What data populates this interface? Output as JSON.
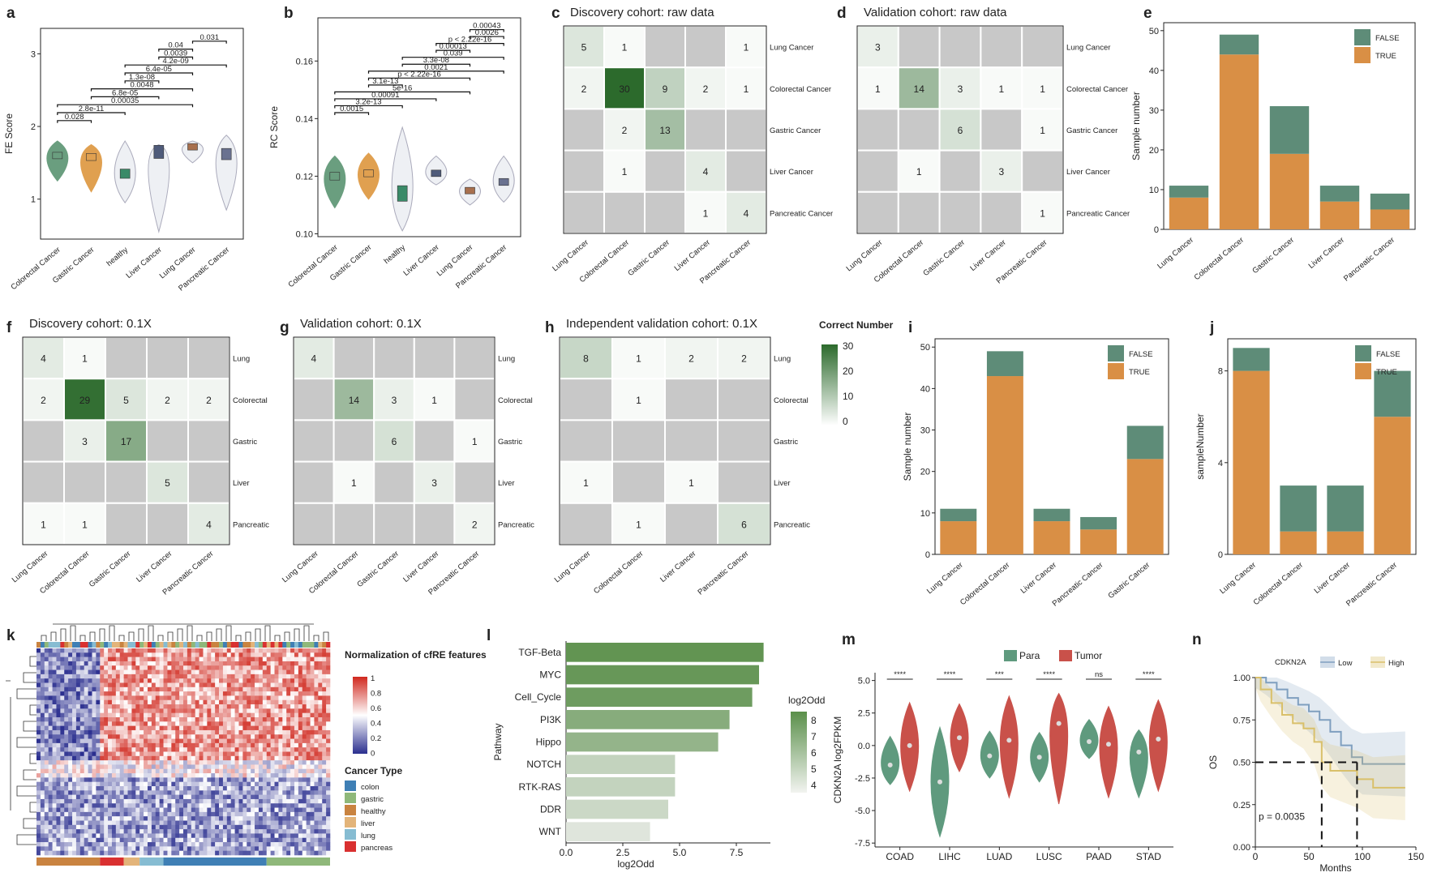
{
  "chart_data": [
    {
      "panel": "a",
      "type": "violin",
      "ylabel": "FE Score",
      "ylim": [
        0.45,
        3.35
      ],
      "yticks": [
        "1",
        "2",
        "3"
      ],
      "categories": [
        "Colorectal Cancer",
        "Gastric Cancer",
        "healthy",
        "Liver Cancer",
        "Lung Cancer",
        "Pancreatic Cancer"
      ],
      "median": [
        1.6,
        1.58,
        1.35,
        1.65,
        1.72,
        1.62
      ],
      "min": [
        1.25,
        1.1,
        0.95,
        0.55,
        1.5,
        0.85
      ],
      "max": [
        1.8,
        1.75,
        1.8,
        1.75,
        1.8,
        1.88
      ],
      "colors": [
        "#6a9e7f",
        "#e0a050",
        "#3a8a68",
        "#4f5b7a",
        "#a8704e",
        "#6a7290"
      ],
      "comparisons": [
        {
          "pair": [
            0,
            1
          ],
          "label": "0.028"
        },
        {
          "pair": [
            0,
            2
          ],
          "label": "2.8e-11"
        },
        {
          "pair": [
            0,
            4
          ],
          "label": "0.00035"
        },
        {
          "pair": [
            1,
            3
          ],
          "label": "6.8e-05"
        },
        {
          "pair": [
            1,
            4
          ],
          "label": "0.0048"
        },
        {
          "pair": [
            2,
            3
          ],
          "label": "1.3e-08"
        },
        {
          "pair": [
            2,
            4
          ],
          "label": "6.4e-05"
        },
        {
          "pair": [
            2,
            5
          ],
          "label": "4.2e-09"
        },
        {
          "pair": [
            3,
            4
          ],
          "label": "0.0039"
        },
        {
          "pair": [
            3,
            4
          ],
          "label": "0.04"
        },
        {
          "pair": [
            4,
            5
          ],
          "label": "0.031"
        }
      ]
    },
    {
      "panel": "b",
      "type": "violin",
      "ylabel": "RC Score",
      "ylim": [
        0.099,
        0.175
      ],
      "yticks": [
        "0.10",
        "0.12",
        "0.14",
        "0.16"
      ],
      "categories": [
        "Colorectal Cancer",
        "Gastric Cancer",
        "healthy",
        "Liver Cancer",
        "Lung Cancer",
        "Pancreatic Cancer"
      ],
      "median": [
        0.12,
        0.121,
        0.114,
        0.121,
        0.115,
        0.118
      ],
      "min": [
        0.109,
        0.112,
        0.101,
        0.117,
        0.11,
        0.111
      ],
      "max": [
        0.127,
        0.128,
        0.137,
        0.127,
        0.119,
        0.127
      ],
      "colors": [
        "#6a9e7f",
        "#e0a050",
        "#3a8a68",
        "#4f5b7a",
        "#a8704e",
        "#6a7290"
      ],
      "comparisons": [
        {
          "pair": [
            0,
            1
          ],
          "label": "0.0015"
        },
        {
          "pair": [
            0,
            2
          ],
          "label": "3.2e-13"
        },
        {
          "pair": [
            0,
            3
          ],
          "label": "0.00091"
        },
        {
          "pair": [
            0,
            4
          ],
          "label": "5e-16"
        },
        {
          "pair": [
            1,
            2
          ],
          "label": "3.1e-13"
        },
        {
          "pair": [
            1,
            4
          ],
          "label": "p < 2.22e-16"
        },
        {
          "pair": [
            1,
            5
          ],
          "label": "0.0021"
        },
        {
          "pair": [
            2,
            4
          ],
          "label": "3.3e-08"
        },
        {
          "pair": [
            2,
            5
          ],
          "label": "0.039"
        },
        {
          "pair": [
            3,
            4
          ],
          "label": "0.00013"
        },
        {
          "pair": [
            3,
            5
          ],
          "label": "p < 2.22e-16"
        },
        {
          "pair": [
            4,
            5
          ],
          "label": "0.0026"
        },
        {
          "pair": [
            4,
            5
          ],
          "label": "0.00043"
        }
      ]
    },
    {
      "panel": "c",
      "type": "heatmap",
      "title": "Discovery cohort: raw data",
      "rows": [
        "Lung Cancer",
        "Colorectal Cancer",
        "Gastric Cancer",
        "Liver Cancer",
        "Pancreatic Cancer"
      ],
      "cols": [
        "Lung Cancer",
        "Colorectal Cancer",
        "Gastric Cancer",
        "Liver Cancer",
        "Pancreatic Cancer"
      ],
      "values": [
        [
          5,
          1,
          null,
          null,
          1
        ],
        [
          2,
          30,
          9,
          2,
          1
        ],
        [
          null,
          2,
          13,
          null,
          null
        ],
        [
          null,
          1,
          null,
          4,
          null
        ],
        [
          null,
          null,
          null,
          1,
          4
        ]
      ]
    },
    {
      "panel": "d",
      "type": "heatmap",
      "title": "Validation cohort: raw data",
      "rows": [
        "Lung Cancer",
        "Colorectal Cancer",
        "Gastric Cancer",
        "Liver Cancer",
        "Pancreatic Cancer"
      ],
      "cols": [
        "Lung Cancer",
        "Colorectal Cancer",
        "Gastric Cancer",
        "Liver Cancer",
        "Pancreatic Cancer"
      ],
      "values": [
        [
          3,
          null,
          null,
          null,
          null
        ],
        [
          1,
          14,
          3,
          1,
          1
        ],
        [
          null,
          null,
          6,
          null,
          1
        ],
        [
          null,
          1,
          null,
          3,
          null
        ],
        [
          null,
          null,
          null,
          null,
          1
        ]
      ]
    },
    {
      "panel": "e",
      "type": "bar",
      "stacked": true,
      "ylabel": "Sample number",
      "ylim": [
        0,
        52
      ],
      "yticks": [
        "0",
        "10",
        "20",
        "30",
        "40",
        "50"
      ],
      "categories": [
        "Lung Cancer",
        "Colorectal Cancer",
        "Gastric Cancer",
        "Liver Cancer",
        "Pancreatic Cancer"
      ],
      "series": [
        {
          "name": "TRUE",
          "values": [
            8,
            44,
            19,
            7,
            5
          ]
        },
        {
          "name": "FALSE",
          "values": [
            3,
            5,
            12,
            4,
            4
          ]
        }
      ],
      "legend": "top-right"
    },
    {
      "panel": "f",
      "type": "heatmap",
      "title": "Discovery cohort: 0.1X",
      "rows": [
        "Lung",
        "Colorectal",
        "Gastric",
        "Liver",
        "Pancreatic"
      ],
      "cols": [
        "Lung Cancer",
        "Colorectal Cancer",
        "Gastric Cancer",
        "Liver Cancer",
        "Pancreatic Cancer"
      ],
      "values": [
        [
          4,
          1,
          null,
          null,
          null
        ],
        [
          2,
          29,
          5,
          2,
          2
        ],
        [
          null,
          3,
          17,
          null,
          null
        ],
        [
          null,
          null,
          null,
          5,
          null
        ],
        [
          1,
          1,
          null,
          null,
          4
        ]
      ]
    },
    {
      "panel": "g",
      "type": "heatmap",
      "title": "Validation cohort: 0.1X",
      "rows": [
        "Lung",
        "Colorectal",
        "Gastric",
        "Liver",
        "Pancreatic"
      ],
      "cols": [
        "Lung Cancer",
        "Colorectal Cancer",
        "Gastric Cancer",
        "Liver Cancer",
        "Pancreatic Cancer"
      ],
      "values": [
        [
          4,
          null,
          null,
          null,
          null
        ],
        [
          null,
          14,
          3,
          1,
          null
        ],
        [
          null,
          null,
          6,
          null,
          1
        ],
        [
          null,
          1,
          null,
          3,
          null
        ],
        [
          null,
          null,
          null,
          null,
          2
        ]
      ]
    },
    {
      "panel": "h",
      "type": "heatmap",
      "title": "Independent validation cohort: 0.1X",
      "rows": [
        "Lung",
        "Colorectal",
        "Gastric",
        "Liver",
        "Pancreatic"
      ],
      "cols": [
        "Lung Cancer",
        "Colorectal Cancer",
        "Liver Cancer",
        "Pancreatic Cancer"
      ],
      "values": [
        [
          8,
          1,
          2,
          2
        ],
        [
          null,
          1,
          null,
          null
        ],
        [
          null,
          null,
          null,
          null
        ],
        [
          1,
          null,
          1,
          null
        ],
        [
          null,
          1,
          null,
          6
        ]
      ],
      "legend_title": "Correct Number",
      "legend_ticks": [
        "30",
        "20",
        "10",
        "0"
      ],
      "range": [
        0,
        30
      ]
    },
    {
      "panel": "i",
      "type": "bar",
      "stacked": true,
      "ylabel": "Sample number",
      "ylim": [
        0,
        52
      ],
      "yticks": [
        "0",
        "10",
        "20",
        "30",
        "40",
        "50"
      ],
      "categories": [
        "Lung Cancer",
        "Colorectal Cancer",
        "Liver Cancer",
        "Pancreatic Cancer",
        "Gastric Cancer"
      ],
      "series": [
        {
          "name": "TRUE",
          "values": [
            8,
            43,
            8,
            6,
            23
          ]
        },
        {
          "name": "FALSE",
          "values": [
            3,
            6,
            3,
            3,
            8
          ]
        }
      ],
      "legend": "top-right"
    },
    {
      "panel": "j",
      "type": "bar",
      "stacked": true,
      "ylabel": "sampleNumber",
      "ylim": [
        0,
        9.4
      ],
      "yticks": [
        "0",
        "4",
        "8"
      ],
      "categories": [
        "Lung Cancer",
        "Colorectal Cancer",
        "Liver Cancer",
        "Pancreatic Cancer"
      ],
      "series": [
        {
          "name": "TRUE",
          "values": [
            8,
            1,
            1,
            6
          ]
        },
        {
          "name": "FALSE",
          "values": [
            1,
            2,
            2,
            2
          ]
        }
      ],
      "legend": "top-right"
    },
    {
      "panel": "k",
      "type": "heatmap",
      "legend_title": "Normalization of cfRE features",
      "legend_ticks": [
        "1",
        "0.8",
        "0.6",
        "0.4",
        "0.2",
        "0"
      ],
      "annotation_title": "Cancer Type",
      "annotation": [
        {
          "name": "colon",
          "color": "#3f7fb5"
        },
        {
          "name": "gastric",
          "color": "#8fb87a"
        },
        {
          "name": "healthy",
          "color": "#c98340"
        },
        {
          "name": "liver",
          "color": "#e3b47a"
        },
        {
          "name": "lung",
          "color": "#86bcd2"
        },
        {
          "name": "pancreas",
          "color": "#d93030"
        }
      ],
      "column_groups": [
        "healthy",
        "pancreas",
        "liver",
        "lung",
        "colon",
        "gastric"
      ]
    },
    {
      "panel": "l",
      "type": "bar",
      "orientation": "horizontal",
      "xlabel": "log2Odd",
      "ylabel": "Pathway",
      "xlim": [
        0,
        9
      ],
      "xticks": [
        "0.0",
        "2.5",
        "5.0",
        "7.5"
      ],
      "categories": [
        "TGF-Beta",
        "MYC",
        "Cell_Cycle",
        "PI3K",
        "Hippo",
        "NOTCH",
        "RTK-RAS",
        "DDR",
        "WNT"
      ],
      "values": [
        8.7,
        8.5,
        8.2,
        7.2,
        6.7,
        4.8,
        4.8,
        4.5,
        3.7
      ],
      "legend_title": "log2Odd",
      "legend_ticks": [
        "8",
        "7",
        "6",
        "5",
        "4"
      ]
    },
    {
      "panel": "m",
      "type": "violin",
      "ylabel": "CDKN2A log2FPKM",
      "ylim": [
        -7.8,
        5.6
      ],
      "yticks": [
        "5.0",
        "2.5",
        "0.0",
        "-2.5",
        "-5.0",
        "-7.5"
      ],
      "categories": [
        "COAD",
        "LIHC",
        "LUAD",
        "LUSC",
        "PAAD",
        "STAD"
      ],
      "significance": [
        "****",
        "****",
        "***",
        "****",
        "ns",
        "****"
      ],
      "series": [
        {
          "name": "Para",
          "color": "#5f9a7e",
          "median": [
            -1.5,
            -2.8,
            -0.8,
            -0.9,
            0.3,
            -0.5
          ],
          "min": [
            -3,
            -7,
            -2.5,
            -2.8,
            -1,
            -4
          ],
          "max": [
            0.7,
            1.4,
            1.1,
            1,
            2,
            1.2
          ]
        },
        {
          "name": "Tumor",
          "color": "#c9514a",
          "median": [
            0,
            0.6,
            0.4,
            1.7,
            0.1,
            0.5
          ],
          "min": [
            -3.5,
            -2,
            -4,
            -4.5,
            -4,
            -3.5
          ],
          "max": [
            3.3,
            3.2,
            3.8,
            4,
            3,
            3.5
          ]
        }
      ]
    },
    {
      "panel": "n",
      "type": "line",
      "xlabel": "Months",
      "ylabel": "OS",
      "xlim": [
        0,
        150
      ],
      "ylim": [
        0,
        1
      ],
      "xticks": [
        "0",
        "50",
        "100",
        "150"
      ],
      "yticks": [
        "0.00",
        "0.25",
        "0.50",
        "0.75",
        "1.00"
      ],
      "legend_title": "CDKN2A",
      "annotation": "p = 0.0035",
      "series": [
        {
          "name": "Low",
          "color": "#7f9fbf",
          "x": [
            0,
            10,
            20,
            30,
            40,
            50,
            60,
            70,
            80,
            90,
            100,
            140
          ],
          "y": [
            1,
            0.97,
            0.93,
            0.88,
            0.84,
            0.8,
            0.75,
            0.68,
            0.6,
            0.53,
            0.49,
            0.49
          ]
        },
        {
          "name": "High",
          "color": "#d9c06a",
          "x": [
            0,
            5,
            15,
            25,
            35,
            45,
            55,
            62,
            70,
            95,
            110,
            140
          ],
          "y": [
            1,
            0.93,
            0.85,
            0.78,
            0.73,
            0.7,
            0.62,
            0.5,
            0.45,
            0.4,
            0.35,
            0.35
          ]
        }
      ]
    }
  ]
}
